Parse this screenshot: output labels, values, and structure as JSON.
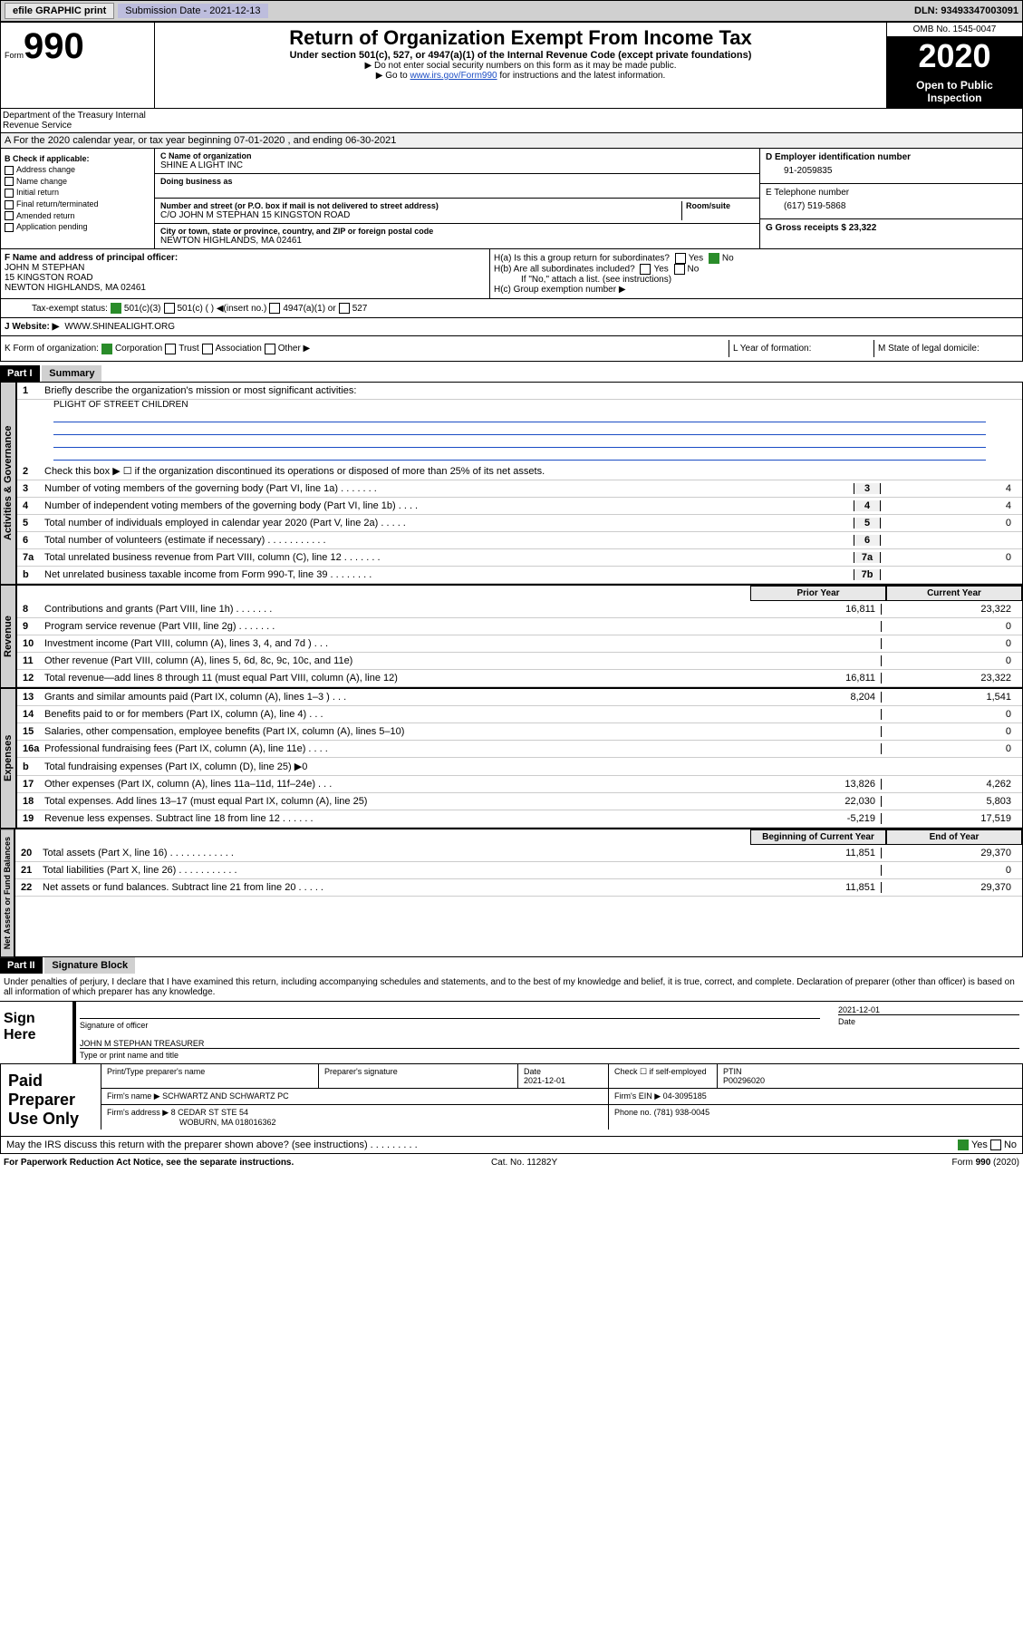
{
  "topbar": {
    "efile": "efile GRAPHIC print",
    "sub_label": "Submission Date - 2021-12-13",
    "dln": "DLN: 93493347003091"
  },
  "header": {
    "form_prefix": "Form",
    "form_num": "990",
    "title": "Return of Organization Exempt From Income Tax",
    "sub1": "Under section 501(c), 527, or 4947(a)(1) of the Internal Revenue Code (except private foundations)",
    "sub2": "▶ Do not enter social security numbers on this form as it may be made public.",
    "sub3_pre": "▶ Go to ",
    "sub3_link": "www.irs.gov/Form990",
    "sub3_post": " for instructions and the latest information.",
    "omb": "OMB No. 1545-0047",
    "year": "2020",
    "open": "Open to Public Inspection",
    "dept": "Department of the Treasury Internal Revenue Service"
  },
  "row_a": "A For the 2020 calendar year, or tax year beginning 07-01-2020   , and ending 06-30-2021",
  "col_b": {
    "hdr": "B Check if applicable:",
    "items": [
      "Address change",
      "Name change",
      "Initial return",
      "Final return/terminated",
      "Amended return",
      "Application pending"
    ]
  },
  "col_c": {
    "name_lbl": "C Name of organization",
    "name": "SHINE A LIGHT INC",
    "dba_lbl": "Doing business as",
    "street_lbl": "Number and street (or P.O. box if mail is not delivered to street address)",
    "room_lbl": "Room/suite",
    "street": "C/O JOHN M STEPHAN 15 KINGSTON ROAD",
    "city_lbl": "City or town, state or province, country, and ZIP or foreign postal code",
    "city": "NEWTON HIGHLANDS, MA  02461"
  },
  "col_d": {
    "ein_lbl": "D Employer identification number",
    "ein": "91-2059835",
    "tel_lbl": "E Telephone number",
    "tel": "(617) 519-5868",
    "gross_lbl": "G Gross receipts $ 23,322"
  },
  "f": {
    "lbl": "F Name and address of principal officer:",
    "name": "JOHN M STEPHAN",
    "addr1": "15 KINGSTON ROAD",
    "addr2": "NEWTON HIGHLANDS, MA  02461"
  },
  "h": {
    "a": "H(a)  Is this a group return for subordinates?",
    "b": "H(b)  Are all subordinates included?",
    "note": "If \"No,\" attach a list. (see instructions)",
    "c": "H(c)  Group exemption number ▶",
    "yes": "Yes",
    "no": "No"
  },
  "i": {
    "lbl": "Tax-exempt status:",
    "opts": [
      "501(c)(3)",
      "501(c) (  ) ◀(insert no.)",
      "4947(a)(1) or",
      "527"
    ]
  },
  "j": {
    "lbl": "J   Website: ▶",
    "val": "WWW.SHINEALIGHT.ORG"
  },
  "k": {
    "lbl": "K Form of organization:",
    "opts": [
      "Corporation",
      "Trust",
      "Association",
      "Other ▶"
    ],
    "l_lbl": "L Year of formation:",
    "m_lbl": "M State of legal domicile:"
  },
  "part1": {
    "hdr": "Part I",
    "title": "Summary",
    "tab1": "Activities & Governance",
    "tab2": "Revenue",
    "tab3": "Expenses",
    "tab4": "Net Assets or Fund Balances",
    "l1": "Briefly describe the organization's mission or most significant activities:",
    "l1_val": "PLIGHT OF STREET CHILDREN",
    "l2": "Check this box ▶ ☐  if the organization discontinued its operations or disposed of more than 25% of its net assets.",
    "lines_gov": [
      {
        "n": "3",
        "t": "Number of voting members of the governing body (Part VI, line 1a)   .    .    .    .    .    .    .",
        "b": "3",
        "v": "4"
      },
      {
        "n": "4",
        "t": "Number of independent voting members of the governing body (Part VI, line 1b)   .    .    .    .",
        "b": "4",
        "v": "4"
      },
      {
        "n": "5",
        "t": "Total number of individuals employed in calendar year 2020 (Part V, line 2a)   .    .    .    .    .",
        "b": "5",
        "v": "0"
      },
      {
        "n": "6",
        "t": "Total number of volunteers (estimate if necessary)  .    .    .    .    .    .    .    .    .    .    .",
        "b": "6",
        "v": ""
      },
      {
        "n": "7a",
        "t": "Total unrelated business revenue from Part VIII, column (C), line 12  .    .    .    .    .    .    .",
        "b": "7a",
        "v": "0"
      },
      {
        "n": "b",
        "t": "Net unrelated business taxable income from Form 990-T, line 39   .    .    .    .    .    .    .    .",
        "b": "7b",
        "v": ""
      }
    ],
    "col_prior": "Prior Year",
    "col_curr": "Current Year",
    "lines_rev": [
      {
        "n": "8",
        "t": "Contributions and grants (Part VIII, line 1h)   .    .    .    .    .    .    .",
        "p": "16,811",
        "c": "23,322"
      },
      {
        "n": "9",
        "t": "Program service revenue (Part VIII, line 2g)  .    .    .    .    .    .    .",
        "p": "",
        "c": "0"
      },
      {
        "n": "10",
        "t": "Investment income (Part VIII, column (A), lines 3, 4, and 7d )   .    .    .",
        "p": "",
        "c": "0"
      },
      {
        "n": "11",
        "t": "Other revenue (Part VIII, column (A), lines 5, 6d, 8c, 9c, 10c, and 11e)",
        "p": "",
        "c": "0"
      },
      {
        "n": "12",
        "t": "Total revenue—add lines 8 through 11 (must equal Part VIII, column (A), line 12)",
        "p": "16,811",
        "c": "23,322"
      }
    ],
    "lines_exp": [
      {
        "n": "13",
        "t": "Grants and similar amounts paid (Part IX, column (A), lines 1–3 )   .    .    .",
        "p": "8,204",
        "c": "1,541"
      },
      {
        "n": "14",
        "t": "Benefits paid to or for members (Part IX, column (A), line 4)   .    .    .",
        "p": "",
        "c": "0"
      },
      {
        "n": "15",
        "t": "Salaries, other compensation, employee benefits (Part IX, column (A), lines 5–10)",
        "p": "",
        "c": "0"
      },
      {
        "n": "16a",
        "t": "Professional fundraising fees (Part IX, column (A), line 11e)  .    .    .    .",
        "p": "",
        "c": "0"
      },
      {
        "n": "b",
        "t": "Total fundraising expenses (Part IX, column (D), line 25) ▶0",
        "p": "grey",
        "c": "grey"
      },
      {
        "n": "17",
        "t": "Other expenses (Part IX, column (A), lines 11a–11d, 11f–24e)  .    .    .",
        "p": "13,826",
        "c": "4,262"
      },
      {
        "n": "18",
        "t": "Total expenses. Add lines 13–17 (must equal Part IX, column (A), line 25)",
        "p": "22,030",
        "c": "5,803"
      },
      {
        "n": "19",
        "t": "Revenue less expenses. Subtract line 18 from line 12  .    .    .    .    .    .",
        "p": "-5,219",
        "c": "17,519"
      }
    ],
    "col_begin": "Beginning of Current Year",
    "col_end": "End of Year",
    "lines_net": [
      {
        "n": "20",
        "t": "Total assets (Part X, line 16)  .    .    .    .    .    .    .    .    .    .    .    .",
        "p": "11,851",
        "c": "29,370"
      },
      {
        "n": "21",
        "t": "Total liabilities (Part X, line 26)   .    .    .    .    .    .    .    .    .    .    .",
        "p": "",
        "c": "0"
      },
      {
        "n": "22",
        "t": "Net assets or fund balances. Subtract line 21 from line 20  .    .    .    .    .",
        "p": "11,851",
        "c": "29,370"
      }
    ]
  },
  "part2": {
    "hdr": "Part II",
    "title": "Signature Block",
    "decl": "Under penalties of perjury, I declare that I have examined this return, including accompanying schedules and statements, and to the best of my knowledge and belief, it is true, correct, and complete. Declaration of preparer (other than officer) is based on all information of which preparer has any knowledge.",
    "sign_here": "Sign Here",
    "sig_off": "Signature of officer",
    "date": "Date",
    "date_val": "2021-12-01",
    "name": "JOHN M STEPHAN  TREASURER",
    "name_lbl": "Type or print name and title",
    "paid": "Paid Preparer Use Only",
    "prep_hdrs": [
      "Print/Type preparer's name",
      "Preparer's signature",
      "Date",
      "",
      "PTIN"
    ],
    "prep_date": "2021-12-01",
    "prep_check": "Check ☐ if self-employed",
    "ptin": "P00296020",
    "firm_name_lbl": "Firm's name    ▶",
    "firm_name": "SCHWARTZ AND SCHWARTZ PC",
    "firm_ein_lbl": "Firm's EIN ▶",
    "firm_ein": "04-3095185",
    "firm_addr_lbl": "Firm's address ▶",
    "firm_addr": "8 CEDAR ST STE 54",
    "firm_city": "WOBURN, MA  018016362",
    "phone_lbl": "Phone no.",
    "phone": "(781) 938-0045",
    "discuss": "May the IRS discuss this return with the preparer shown above? (see instructions)   .    .    .    .    .    .    .    .    .",
    "yes": "Yes",
    "no": "No"
  },
  "footer": {
    "pra": "For Paperwork Reduction Act Notice, see the separate instructions.",
    "cat": "Cat. No. 11282Y",
    "form": "Form 990 (2020)"
  }
}
